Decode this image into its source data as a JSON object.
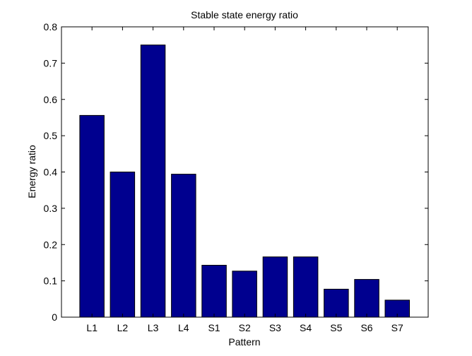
{
  "chart_data": {
    "type": "bar",
    "title": "Stable state energy ratio",
    "xlabel": "Pattern",
    "ylabel": "Energy ratio",
    "categories": [
      "L1",
      "L2",
      "L3",
      "L4",
      "S1",
      "S2",
      "S3",
      "S4",
      "S5",
      "S6",
      "S7"
    ],
    "values": [
      0.556,
      0.4,
      0.75,
      0.394,
      0.143,
      0.127,
      0.166,
      0.166,
      0.077,
      0.104,
      0.047
    ],
    "ylim": [
      0,
      0.8
    ],
    "yticks": [
      "0",
      "0.1",
      "0.2",
      "0.3",
      "0.4",
      "0.5",
      "0.6",
      "0.7",
      "0.8"
    ],
    "grid": false,
    "bar_color": "#00008f",
    "edge_color": "#000000"
  }
}
